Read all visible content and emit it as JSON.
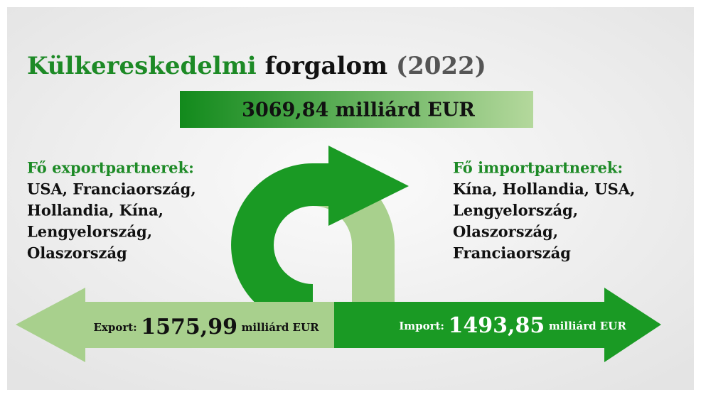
{
  "title": {
    "part1": "Külkereskedelmi",
    "part2": "forgalom",
    "part3": "(2022)"
  },
  "total": "3069,84 milliárd EUR",
  "export_partners": {
    "heading": "Fő exportpartnerek:",
    "lines": [
      "USA, Franciaország,",
      "Hollandia, Kína,",
      "Lengyelország,",
      "Olaszország"
    ]
  },
  "import_partners": {
    "heading": "Fő importpartnerek:",
    "lines": [
      "Kína, Hollandia, USA,",
      "Lengyelország,",
      "Olaszország,",
      "Franciaország"
    ]
  },
  "export": {
    "label": "Export:",
    "amount": "1575,99",
    "unit": "milliárd EUR"
  },
  "import": {
    "label": "Import:",
    "amount": "1493,85",
    "unit": "milliárd EUR"
  }
}
